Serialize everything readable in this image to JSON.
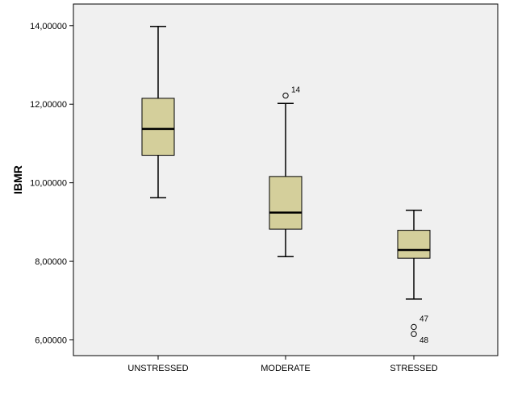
{
  "chart_data": {
    "type": "box",
    "title": "",
    "xlabel": "",
    "ylabel": "IBMR",
    "ylim": [
      5.6,
      14.55
    ],
    "yticks": [
      6.0,
      8.0,
      10.0,
      12.0,
      14.0
    ],
    "ytick_labels": [
      "6,00000",
      "8,00000",
      "10,00000",
      "12,00000",
      "14,00000"
    ],
    "categories": [
      "UNSTRESSED",
      "MODERATE",
      "STRESSED"
    ],
    "boxes": [
      {
        "category": "UNSTRESSED",
        "whisker_low": 9.62,
        "q1": 10.7,
        "median": 11.37,
        "q3": 12.15,
        "whisker_high": 13.98,
        "outliers": []
      },
      {
        "category": "MODERATE",
        "whisker_low": 8.12,
        "q1": 8.82,
        "median": 9.24,
        "q3": 10.16,
        "whisker_high": 12.02,
        "outliers": [
          {
            "value": 12.22,
            "label": "14"
          }
        ]
      },
      {
        "category": "STRESSED",
        "whisker_low": 7.04,
        "q1": 8.08,
        "median": 8.29,
        "q3": 8.79,
        "whisker_high": 9.3,
        "outliers": [
          {
            "value": 6.33,
            "label": "47"
          },
          {
            "value": 6.15,
            "label": "48"
          }
        ]
      }
    ],
    "colors": {
      "plot_background": "#f0f0f0",
      "box_fill": "#d4cf9b",
      "stroke": "#000000"
    },
    "grid": false,
    "legend": "none"
  }
}
